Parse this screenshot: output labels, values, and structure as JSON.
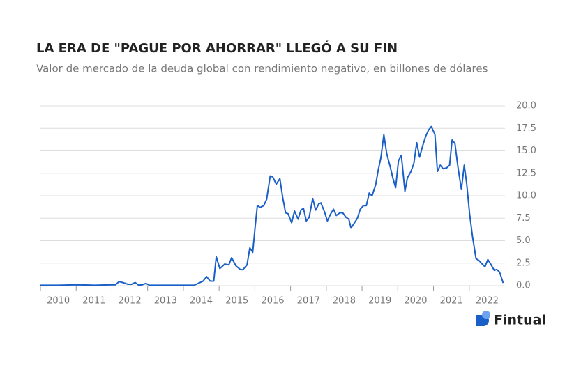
{
  "chart_data": {
    "type": "line",
    "title": "LA ERA DE \"PAGUE POR AHORRAR\" LLEGÓ A SU FIN",
    "subtitle": "Valor de mercado de la deuda global con rendimiento negativo, en billones de dólares",
    "series": [
      {
        "color": "#1a5fc8",
        "x": [
          2010.0,
          2010.5,
          2011.0,
          2011.5,
          2012.0,
          2012.1,
          2012.2,
          2012.3,
          2012.45,
          2012.55,
          2012.65,
          2012.75,
          2012.85,
          2012.95,
          2013.05,
          2013.5,
          2014.0,
          2014.3,
          2014.55,
          2014.65,
          2014.75,
          2014.85,
          2014.92,
          2015.02,
          2015.16,
          2015.27,
          2015.35,
          2015.47,
          2015.59,
          2015.66,
          2015.78,
          2015.86,
          2015.94,
          2016.02,
          2016.07,
          2016.15,
          2016.25,
          2016.33,
          2016.43,
          2016.5,
          2016.6,
          2016.7,
          2016.78,
          2016.86,
          2016.93,
          2017.03,
          2017.11,
          2017.21,
          2017.29,
          2017.36,
          2017.44,
          2017.52,
          2017.62,
          2017.7,
          2017.79,
          2017.85,
          2017.95,
          2018.03,
          2018.11,
          2018.2,
          2018.28,
          2018.38,
          2018.46,
          2018.55,
          2018.63,
          2018.69,
          2018.79,
          2018.87,
          2018.95,
          2019.04,
          2019.12,
          2019.2,
          2019.28,
          2019.38,
          2019.45,
          2019.53,
          2019.61,
          2019.69,
          2019.79,
          2019.86,
          2019.94,
          2020.02,
          2020.1,
          2020.2,
          2020.27,
          2020.37,
          2020.45,
          2020.53,
          2020.61,
          2020.7,
          2020.78,
          2020.86,
          2020.94,
          2021.04,
          2021.11,
          2021.19,
          2021.27,
          2021.37,
          2021.45,
          2021.52,
          2021.6,
          2021.68,
          2021.78,
          2021.86,
          2021.93,
          2022.01,
          2022.09,
          2022.19,
          2022.27,
          2022.34,
          2022.44,
          2022.52,
          2022.6,
          2022.7,
          2022.77,
          2022.85,
          2022.95
        ],
        "values": [
          0.05,
          0.05,
          0.1,
          0.05,
          0.1,
          0.1,
          0.45,
          0.35,
          0.15,
          0.15,
          0.35,
          0.05,
          0.1,
          0.25,
          0.05,
          0.05,
          0.05,
          0.05,
          0.5,
          1.0,
          0.5,
          0.5,
          3.2,
          1.9,
          2.4,
          2.3,
          3.1,
          2.2,
          1.8,
          1.75,
          2.3,
          4.2,
          3.7,
          7.0,
          8.9,
          8.7,
          8.9,
          9.6,
          12.2,
          12.1,
          11.3,
          11.9,
          9.8,
          8.1,
          8.0,
          7.0,
          8.3,
          7.4,
          8.4,
          8.6,
          7.2,
          7.6,
          9.7,
          8.4,
          9.1,
          9.2,
          8.2,
          7.2,
          7.9,
          8.5,
          7.8,
          8.1,
          8.1,
          7.6,
          7.4,
          6.4,
          7.0,
          7.5,
          8.5,
          8.9,
          8.9,
          10.3,
          10.0,
          11.2,
          12.8,
          14.3,
          16.8,
          14.7,
          13.2,
          12.0,
          10.9,
          13.9,
          14.5,
          10.5,
          12.0,
          12.7,
          13.6,
          15.9,
          14.3,
          15.6,
          16.6,
          17.3,
          17.7,
          16.8,
          12.7,
          13.4,
          13.0,
          13.1,
          13.4,
          16.2,
          15.8,
          13.3,
          10.7,
          13.4,
          11.3,
          8.0,
          5.5,
          3.0,
          2.8,
          2.5,
          2.1,
          2.9,
          2.4,
          1.7,
          1.8,
          1.5,
          0.3
        ]
      }
    ],
    "xlim": [
      2010,
      2023
    ],
    "xticks": [
      2010,
      2011,
      2012,
      2013,
      2014,
      2015,
      2016,
      2017,
      2018,
      2019,
      2020,
      2021,
      2022
    ],
    "ylim": [
      0,
      20
    ],
    "yticks": [
      {
        "value": 0,
        "label": "0.0"
      },
      {
        "value": 2.5,
        "label": "2.5"
      },
      {
        "value": 5,
        "label": "5.0"
      },
      {
        "value": 7.5,
        "label": "7.5"
      },
      {
        "value": 10,
        "label": "10.0"
      },
      {
        "value": 12.5,
        "label": "12.5"
      },
      {
        "value": 15,
        "label": "15.0"
      },
      {
        "value": 17.5,
        "label": "17.5"
      },
      {
        "value": 20,
        "label": "20.0"
      }
    ],
    "grid": true
  },
  "brand": "Fintual"
}
